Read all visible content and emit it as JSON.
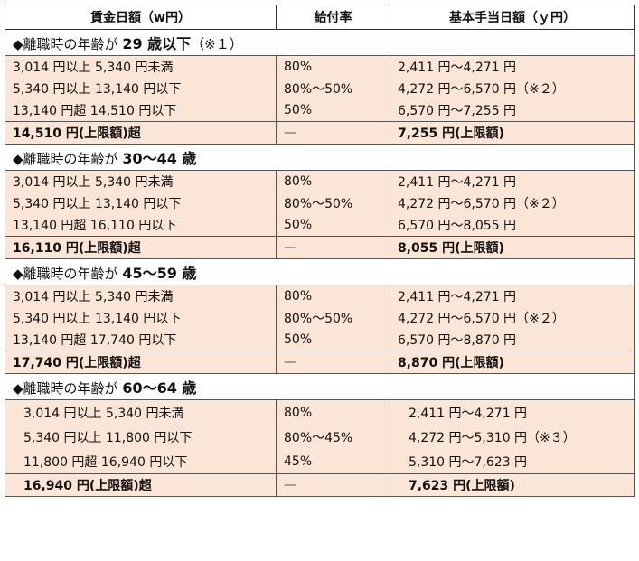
{
  "header": {
    "col1": "賃金日額（w円）",
    "col2": "給付率",
    "col3": "基本手当日額（ｙ円）"
  },
  "groups": [
    {
      "prefix": "◆離職時の年齢が",
      "age": "29 歳以下",
      "suffix": "（※１）",
      "rows": [
        {
          "amount": "3,014 円以上 5,340 円未満",
          "rate": "80%",
          "basic": "2,411 円～4,271 円"
        },
        {
          "amount": "5,340 円以上 13,140 円以下",
          "rate": "80%～50%",
          "basic": "4,272 円～6,570 円（※２）"
        },
        {
          "amount": "13,140 円超 14,510 円以下",
          "rate": "50%",
          "basic": "6,570 円～7,255 円"
        }
      ],
      "cap": {
        "amount": "14,510 円(上限額)超",
        "rate": "—",
        "basic": "7,255 円(上限額)"
      }
    },
    {
      "prefix": "◆離職時の年齢が",
      "age": "30～44 歳",
      "suffix": "",
      "rows": [
        {
          "amount": "3,014 円以上 5,340 円未満",
          "rate": "80%",
          "basic": "2,411 円～4,271 円"
        },
        {
          "amount": "5,340 円以上 13,140 円以下",
          "rate": "80%～50%",
          "basic": "4,272 円～6,570 円（※２）"
        },
        {
          "amount": "13,140 円超 16,110 円以下",
          "rate": "50%",
          "basic": "6,570 円～8,055 円"
        }
      ],
      "cap": {
        "amount": "16,110 円(上限額)超",
        "rate": "—",
        "basic": "8,055 円(上限額)"
      }
    },
    {
      "prefix": "◆離職時の年齢が",
      "age": "45～59 歳",
      "suffix": "",
      "rows": [
        {
          "amount": "3,014 円以上 5,340 円未満",
          "rate": "80%",
          "basic": "2,411 円～4,271 円"
        },
        {
          "amount": "5,340 円以上 13,140 円以下",
          "rate": "80%～50%",
          "basic": "4,272 円～6,570 円（※２）"
        },
        {
          "amount": "13,140 円超 17,740 円以下",
          "rate": "50%",
          "basic": "6,570 円～8,870 円"
        }
      ],
      "cap": {
        "amount": "17,740 円(上限額)超",
        "rate": "—",
        "basic": "8,870 円(上限額)"
      }
    },
    {
      "prefix": "◆離職時の年齢が",
      "age": "60～64 歳",
      "suffix": "",
      "rows": [
        {
          "amount": "3,014 円以上 5,340 円未満",
          "rate": "80%",
          "basic": "2,411 円～4,271 円"
        },
        {
          "amount": "5,340 円以上 11,800 円以下",
          "rate": "80%～45%",
          "basic": "4,272 円～5,310 円（※３）"
        },
        {
          "amount": "11,800 円超 16,940 円以下",
          "rate": "45%",
          "basic": "5,310 円～7,623 円"
        }
      ],
      "cap": {
        "amount": "16,940 円(上限額)超",
        "rate": "—",
        "basic": "7,623 円(上限額)"
      }
    }
  ]
}
